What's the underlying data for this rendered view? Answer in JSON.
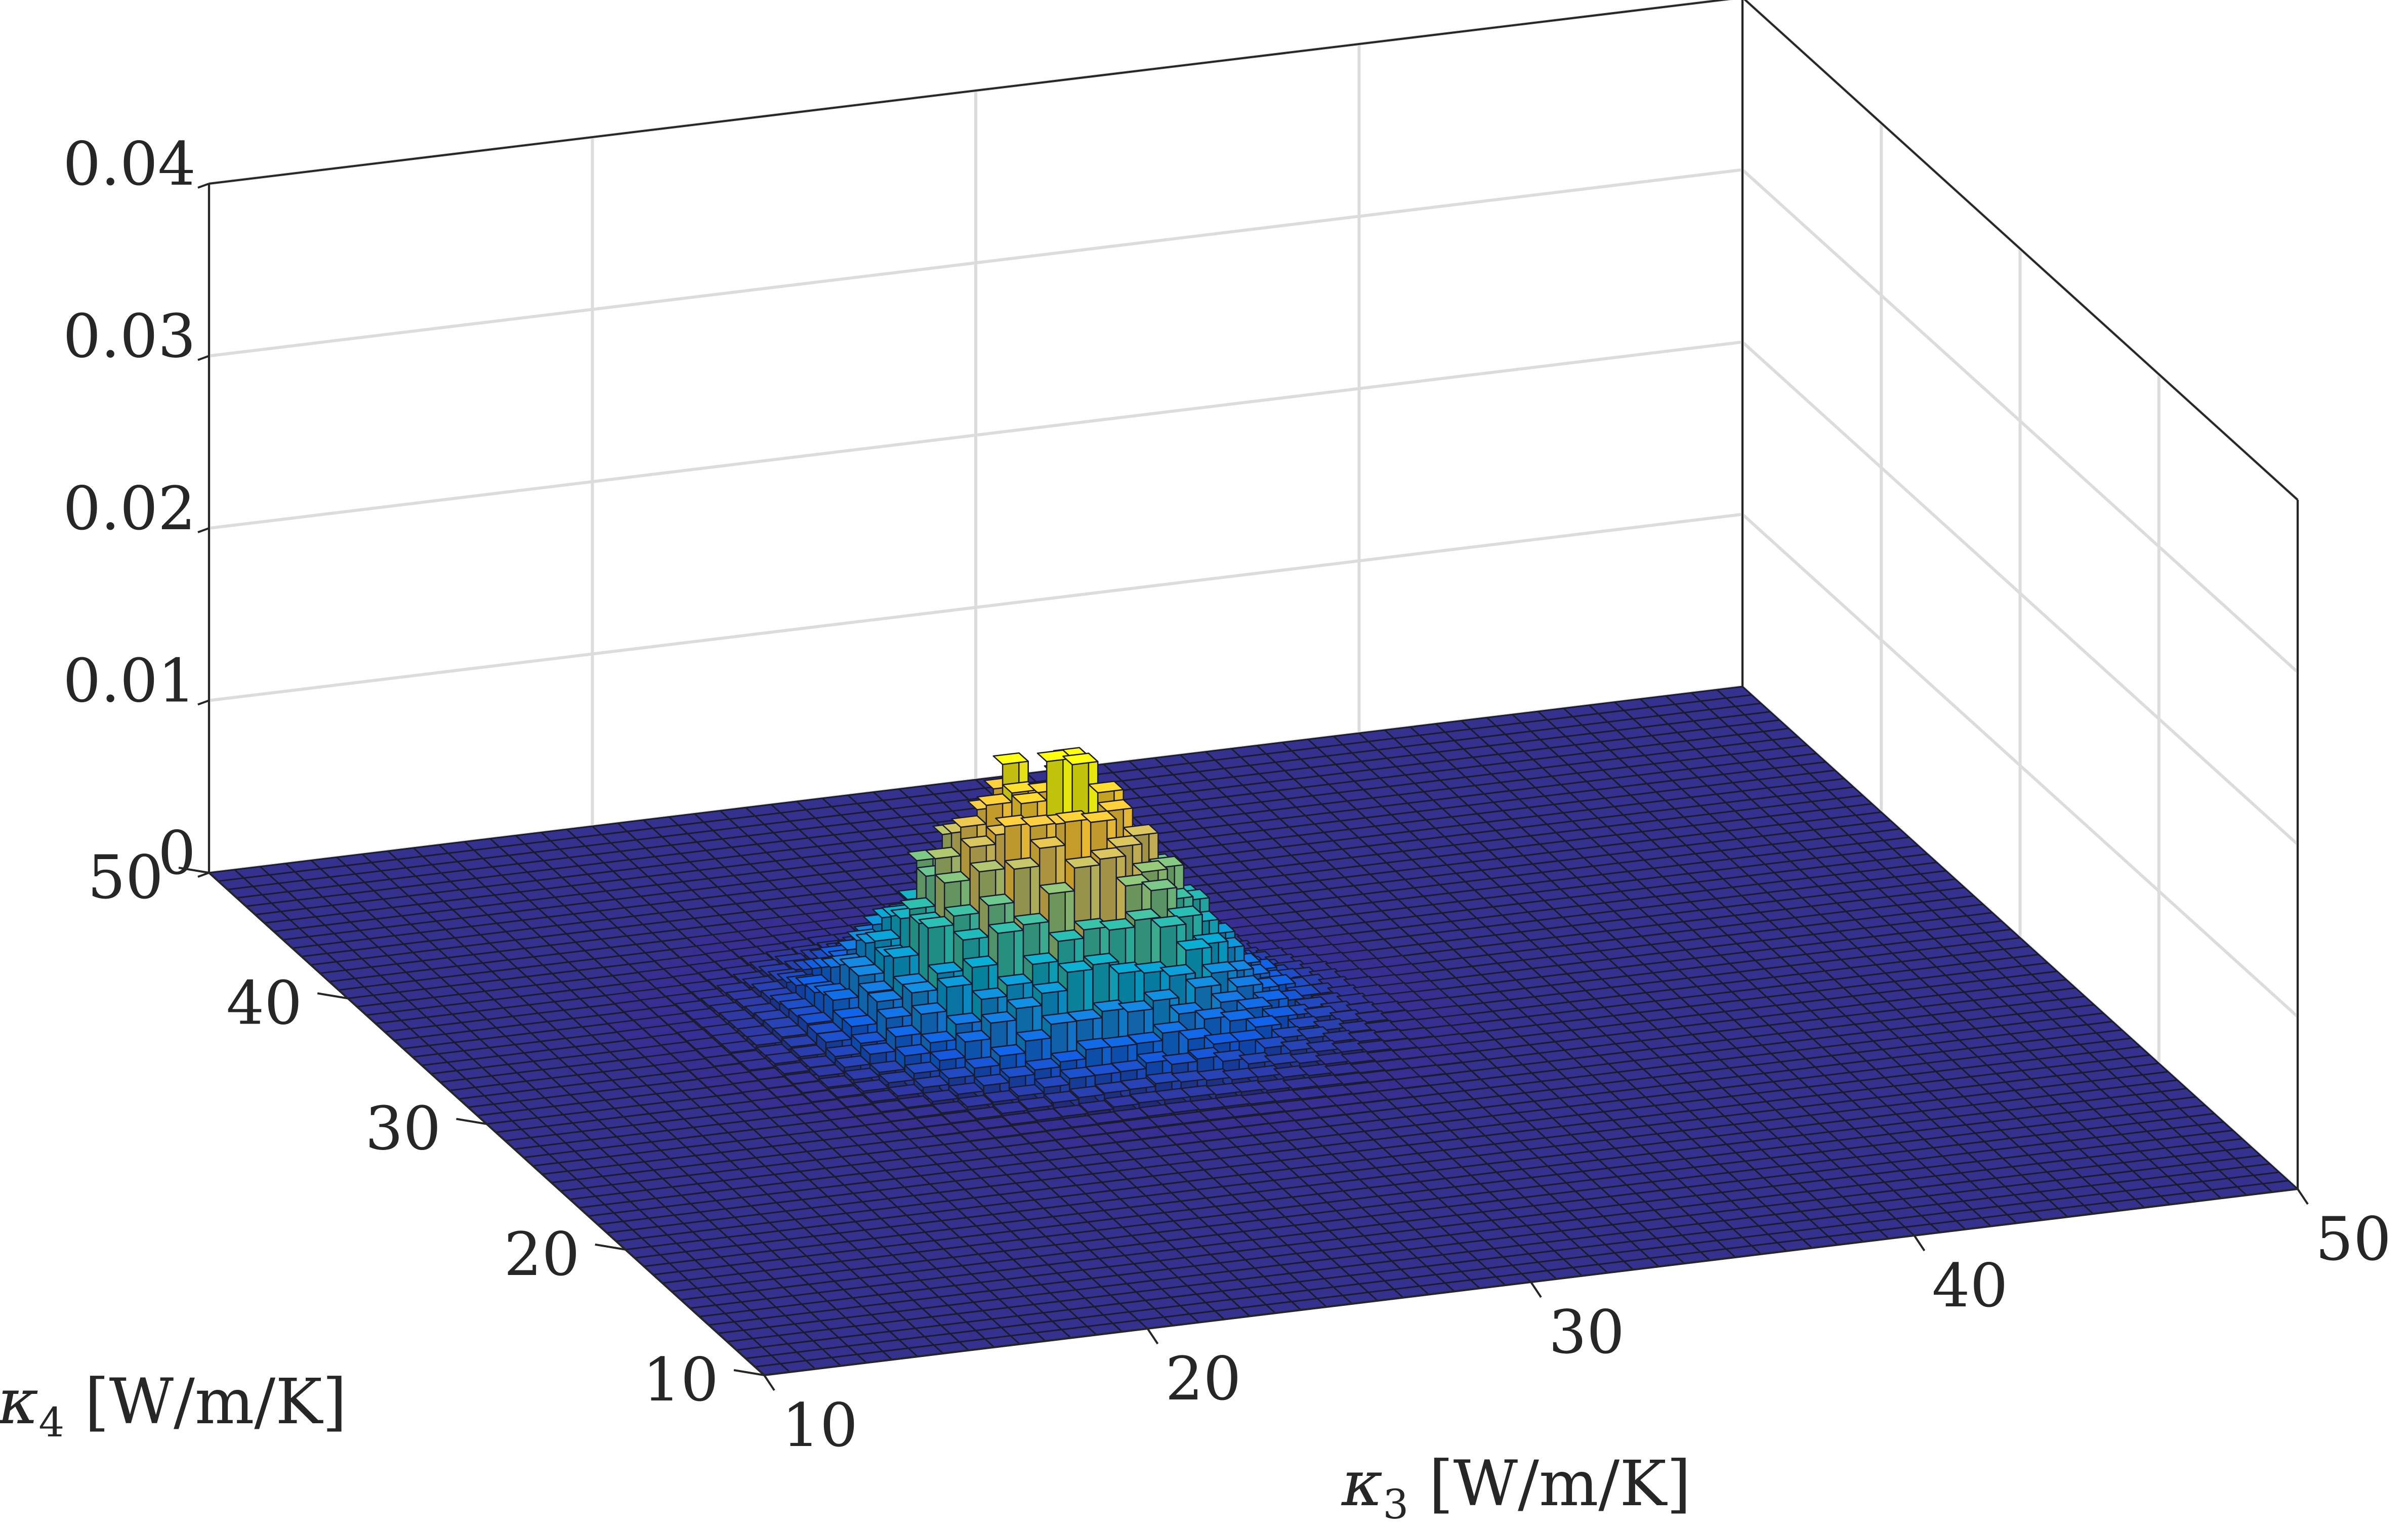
{
  "chart_data": {
    "type": "bar3",
    "title": "",
    "xlabel": {
      "symbol": "κ",
      "subscript": "3",
      "units": "[W/m/K]"
    },
    "ylabel": {
      "symbol": "κ",
      "subscript": "4",
      "units": "[W/m/K]"
    },
    "zlabel": "",
    "xlim": [
      10,
      50
    ],
    "ylim": [
      10,
      50
    ],
    "zlim": [
      0,
      0.04
    ],
    "x_ticks": [
      "10",
      "20",
      "30",
      "40",
      "50"
    ],
    "y_ticks": [
      "10",
      "20",
      "30",
      "40",
      "50"
    ],
    "z_ticks": [
      "0",
      "0.01",
      "0.02",
      "0.03",
      "0.04"
    ],
    "grid": true,
    "colormap": "parula",
    "bins_per_axis": 60,
    "distribution": {
      "kind": "gaussian-histogram",
      "peak_value": 0.0145,
      "center": [
        25.5,
        32.5
      ],
      "std_dev": [
        2.7,
        2.6
      ],
      "correlation": -0.15,
      "noise_fraction": 0.12
    }
  },
  "colors": {
    "floor": "#35318f",
    "edge": "#1b1b30",
    "axis": "#262626",
    "grid": "#dcdcdc",
    "parula": [
      "#352a87",
      "#0f5cdd",
      "#1481d6",
      "#06a4ca",
      "#2eb7a4",
      "#87bf77",
      "#d1bb59",
      "#fec832",
      "#f9fb0e"
    ]
  }
}
